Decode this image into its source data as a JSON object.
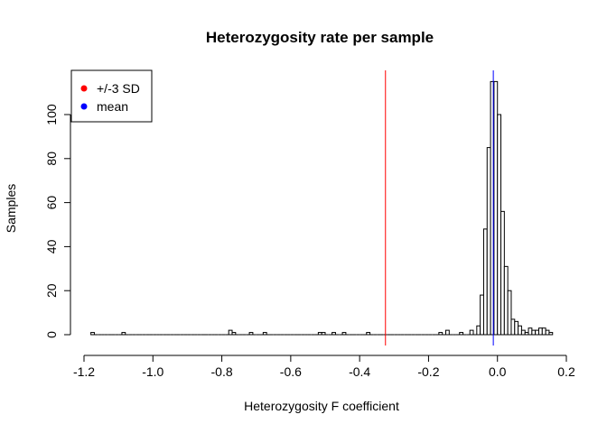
{
  "chart_data": {
    "type": "bar",
    "title": "Heterozygosity rate per sample",
    "xlabel": "Heterozygosity F coefficient",
    "ylabel": "Samples",
    "xlim": [
      -1.2,
      0.2
    ],
    "ylim": [
      0,
      120
    ],
    "x_ticks": [
      "-1.2",
      "-1.0",
      "-0.8",
      "-0.6",
      "-0.4",
      "-0.2",
      "0.0",
      "0.2"
    ],
    "y_ticks": [
      "0",
      "20",
      "40",
      "60",
      "80",
      "100"
    ],
    "bin_width": 0.01,
    "bins": [
      {
        "x0": -1.18,
        "count": 1
      },
      {
        "x0": -1.09,
        "count": 1
      },
      {
        "x0": -0.78,
        "count": 2
      },
      {
        "x0": -0.77,
        "count": 1
      },
      {
        "x0": -0.72,
        "count": 1
      },
      {
        "x0": -0.68,
        "count": 1
      },
      {
        "x0": -0.52,
        "count": 1
      },
      {
        "x0": -0.51,
        "count": 1
      },
      {
        "x0": -0.48,
        "count": 1
      },
      {
        "x0": -0.45,
        "count": 1
      },
      {
        "x0": -0.38,
        "count": 1
      },
      {
        "x0": -0.17,
        "count": 1
      },
      {
        "x0": -0.15,
        "count": 2
      },
      {
        "x0": -0.11,
        "count": 1
      },
      {
        "x0": -0.08,
        "count": 2
      },
      {
        "x0": -0.06,
        "count": 4
      },
      {
        "x0": -0.05,
        "count": 18
      },
      {
        "x0": -0.04,
        "count": 48
      },
      {
        "x0": -0.03,
        "count": 85
      },
      {
        "x0": -0.02,
        "count": 115
      },
      {
        "x0": -0.01,
        "count": 115
      },
      {
        "x0": 0.0,
        "count": 100
      },
      {
        "x0": 0.01,
        "count": 56
      },
      {
        "x0": 0.02,
        "count": 31
      },
      {
        "x0": 0.03,
        "count": 20
      },
      {
        "x0": 0.04,
        "count": 7
      },
      {
        "x0": 0.05,
        "count": 6
      },
      {
        "x0": 0.06,
        "count": 4
      },
      {
        "x0": 0.07,
        "count": 2
      },
      {
        "x0": 0.08,
        "count": 1
      },
      {
        "x0": 0.09,
        "count": 3
      },
      {
        "x0": 0.1,
        "count": 2
      },
      {
        "x0": 0.11,
        "count": 2
      },
      {
        "x0": 0.12,
        "count": 3
      },
      {
        "x0": 0.13,
        "count": 3
      },
      {
        "x0": 0.14,
        "count": 2
      },
      {
        "x0": 0.15,
        "count": 1
      }
    ],
    "empty_bin_range": [
      -1.18,
      0.16
    ],
    "reference_lines": [
      {
        "label": "+/-3 SD",
        "x": -0.325,
        "color": "#ff0000"
      },
      {
        "label": "mean",
        "x": -0.012,
        "color": "#0000ff"
      }
    ],
    "legend": {
      "placement": "top-left",
      "entries": [
        {
          "label": "+/-3 SD",
          "color": "#ff0000"
        },
        {
          "label": "mean",
          "color": "#0000ff"
        }
      ]
    },
    "grid": false
  }
}
